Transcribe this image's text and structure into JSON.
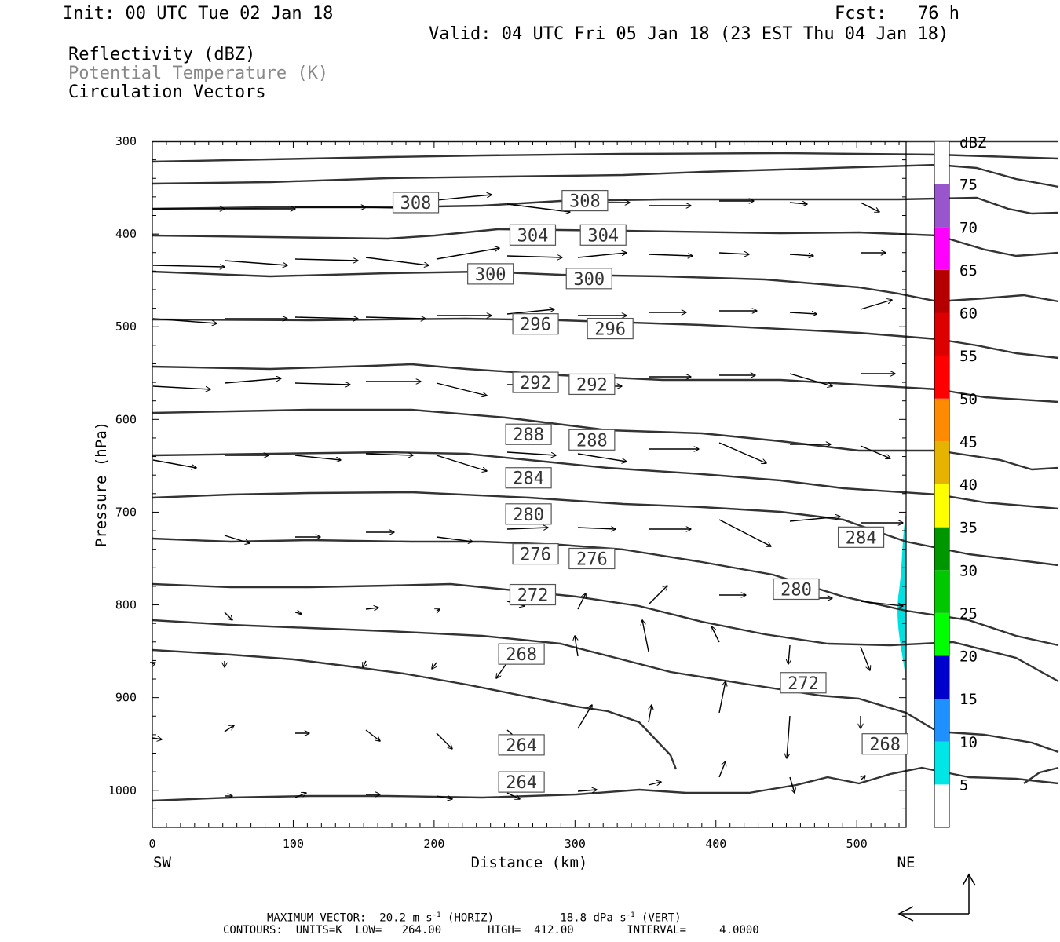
{
  "header": {
    "init": "Init: 00 UTC Tue 02 Jan 18",
    "fcst": "Fcst:   76 h",
    "valid": "Valid: 04 UTC Fri 05 Jan 18 (23 EST Thu 04 Jan 18)"
  },
  "legend": {
    "reflectivity": "Reflectivity (dBZ)",
    "theta": "Potential Temperature (K)",
    "vectors": "Circulation Vectors"
  },
  "colors": {
    "contour": "#333333",
    "theta_legend": "#888888",
    "echo": "#00e0e0"
  },
  "chart_data": {
    "type": "cross-section contour",
    "xlabel": "Distance (km)",
    "ylabel": "Pressure (hPa)",
    "xlim": [
      0,
      535
    ],
    "ylim": [
      1040,
      300
    ],
    "x_ticks": [
      0,
      100,
      200,
      300,
      400,
      500
    ],
    "y_ticks": [
      300,
      400,
      500,
      600,
      700,
      800,
      900,
      1000
    ],
    "x_end_labels": {
      "left": "SW",
      "right": "NE"
    },
    "colorbar": {
      "title": "dBZ",
      "levels": [
        5,
        10,
        15,
        20,
        25,
        30,
        35,
        40,
        45,
        50,
        55,
        60,
        65,
        70,
        75
      ],
      "colors": [
        "#00e5e5",
        "#1e90ff",
        "#0000cd",
        "#00ff00",
        "#00c800",
        "#009600",
        "#ffff00",
        "#e6b400",
        "#ff8c00",
        "#ff0000",
        "#dc0000",
        "#b40000",
        "#ff00ff",
        "#9955cc",
        "#ffffff"
      ]
    },
    "contour_labels": [
      {
        "value": "308",
        "x": 187,
        "p": 366
      },
      {
        "value": "308",
        "x": 307,
        "p": 364
      },
      {
        "value": "304",
        "x": 270,
        "p": 401
      },
      {
        "value": "304",
        "x": 320,
        "p": 401
      },
      {
        "value": "300",
        "x": 240,
        "p": 443
      },
      {
        "value": "300",
        "x": 310,
        "p": 448
      },
      {
        "value": "296",
        "x": 272,
        "p": 497
      },
      {
        "value": "296",
        "x": 325,
        "p": 502
      },
      {
        "value": "292",
        "x": 272,
        "p": 560
      },
      {
        "value": "292",
        "x": 312,
        "p": 562
      },
      {
        "value": "288",
        "x": 267,
        "p": 616
      },
      {
        "value": "288",
        "x": 312,
        "p": 622
      },
      {
        "value": "284",
        "x": 267,
        "p": 663
      },
      {
        "value": "280",
        "x": 267,
        "p": 702
      },
      {
        "value": "276",
        "x": 272,
        "p": 745
      },
      {
        "value": "276",
        "x": 312,
        "p": 750
      },
      {
        "value": "284",
        "x": 503,
        "p": 727
      },
      {
        "value": "280",
        "x": 457,
        "p": 783
      },
      {
        "value": "272",
        "x": 270,
        "p": 789
      },
      {
        "value": "272",
        "x": 462,
        "p": 884
      },
      {
        "value": "268",
        "x": 262,
        "p": 853
      },
      {
        "value": "268",
        "x": 520,
        "p": 950
      },
      {
        "value": "264",
        "x": 262,
        "p": 951
      },
      {
        "value": "264",
        "x": 262,
        "p": 991
      }
    ],
    "footer": {
      "max_vector_label": "MAXIMUM VECTOR:",
      "horiz_value": "20.2",
      "horiz_unit": "m s",
      "horiz_tag": "(HORIZ)",
      "vert_value": "18.8",
      "vert_unit": "dPa s",
      "vert_tag": "(VERT)",
      "superscript": "-1",
      "contours": "CONTOURS:  UNITS=K  LOW=   264.00       HIGH=  412.00        INTERVAL=     4.0000"
    }
  }
}
